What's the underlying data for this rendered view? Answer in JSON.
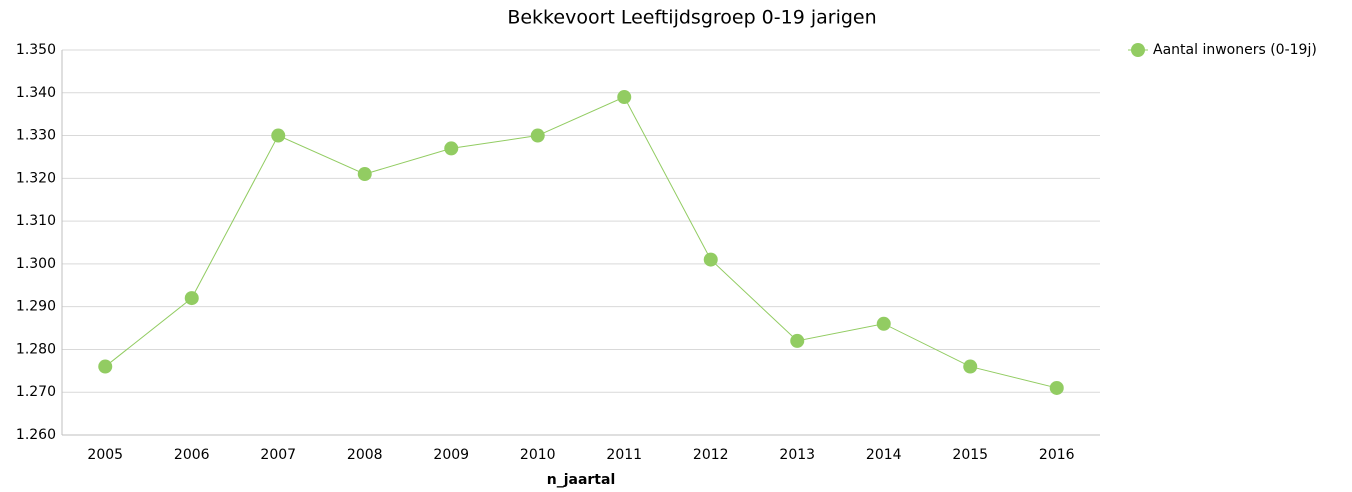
{
  "chart_data": {
    "type": "line",
    "title": "Bekkevoort  Leeftijdsgroep 0-19 jarigen",
    "xlabel": "n_jaartal",
    "categories": [
      "2005",
      "2006",
      "2007",
      "2008",
      "2009",
      "2010",
      "2011",
      "2012",
      "2013",
      "2014",
      "2015",
      "2016"
    ],
    "series": [
      {
        "name": "Aantal inwoners (0-19j)",
        "color": "#92cc62",
        "values": [
          1276,
          1292,
          1330,
          1321,
          1327,
          1330,
          1339,
          1301,
          1282,
          1286,
          1276,
          1271
        ]
      }
    ],
    "ylim": [
      1260,
      1350
    ],
    "yticks": [
      {
        "value": 1260,
        "label": "1.260"
      },
      {
        "value": 1270,
        "label": "1.270"
      },
      {
        "value": 1280,
        "label": "1.280"
      },
      {
        "value": 1290,
        "label": "1.290"
      },
      {
        "value": 1300,
        "label": "1.300"
      },
      {
        "value": 1310,
        "label": "1.310"
      },
      {
        "value": 1320,
        "label": "1.320"
      },
      {
        "value": 1330,
        "label": "1.330"
      },
      {
        "value": 1340,
        "label": "1.340"
      },
      {
        "value": 1350,
        "label": "1.350"
      }
    ],
    "grid": true,
    "legend": "top-right"
  }
}
